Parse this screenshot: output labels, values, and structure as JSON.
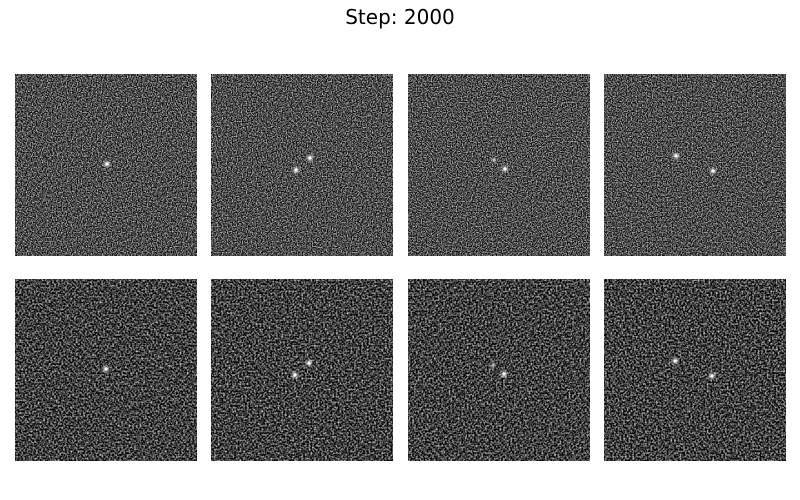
{
  "title": "Step: 2000"
}
